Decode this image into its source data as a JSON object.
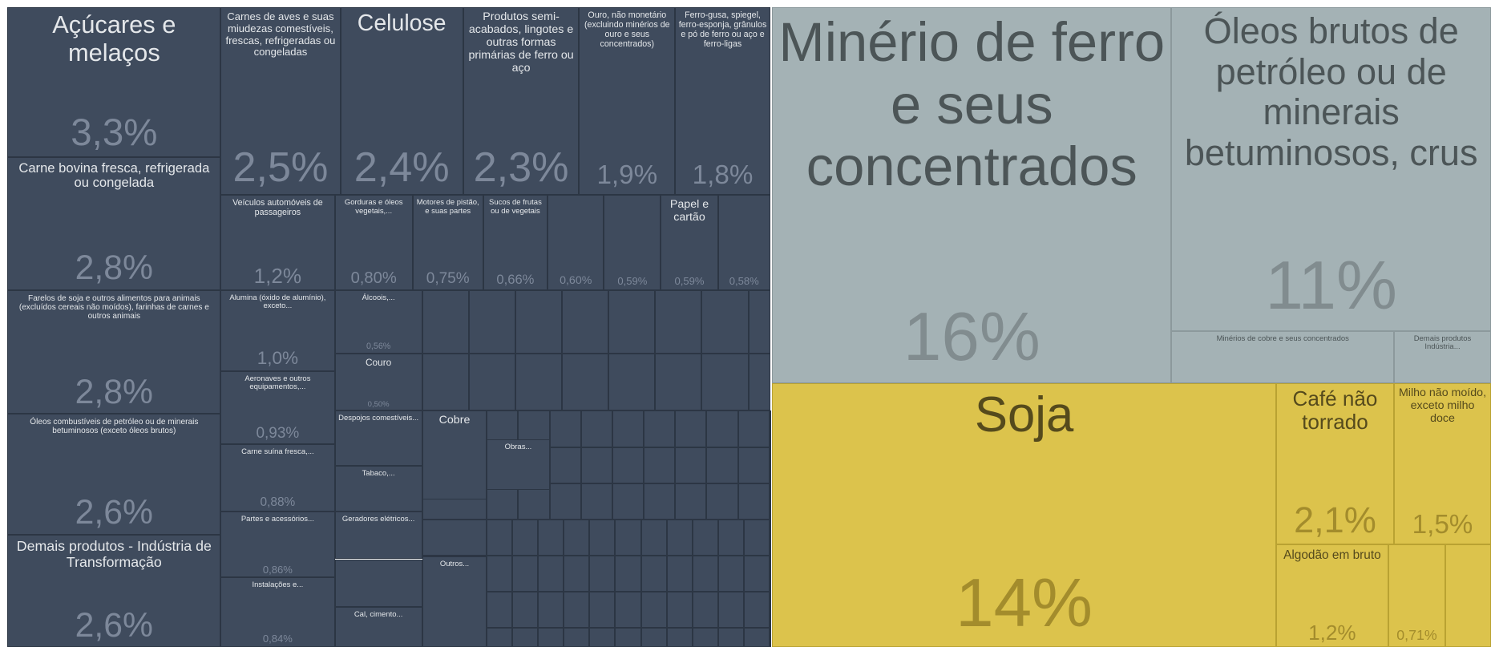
{
  "chart_data": {
    "type": "treemap",
    "groups": [
      {
        "color": "#3f4b5d",
        "items": [
          {
            "name": "Açúcares e melaços",
            "value": 3.3,
            "value_label": "3,3%"
          },
          {
            "name": "Carne bovina fresca, refrigerada ou congelada",
            "value": 2.8,
            "value_label": "2,8%"
          },
          {
            "name": "Farelos de soja e outros alimentos para animais (excluídos cereais não moídos), farinhas de carnes e outros animais",
            "value": 2.8,
            "value_label": "2,8%"
          },
          {
            "name": "Óleos combustíveis de petróleo ou de minerais betuminosos (exceto óleos brutos)",
            "value": 2.6,
            "value_label": "2,6%"
          },
          {
            "name": "Demais produtos - Indústria de Transformação",
            "value": 2.6,
            "value_label": "2,6%"
          },
          {
            "name": "Carnes de aves e suas miudezas comestíveis, frescas, refrigeradas ou congeladas",
            "value": 2.5,
            "value_label": "2,5%"
          },
          {
            "name": "Celulose",
            "value": 2.4,
            "value_label": "2,4%"
          },
          {
            "name": "Produtos semi-acabados, lingotes e outras formas primárias de ferro ou aço",
            "value": 2.3,
            "value_label": "2,3%"
          },
          {
            "name": "Ouro, não monetário (excluindo minérios de ouro e seus concentrados)",
            "value": 1.9,
            "value_label": "1,9%"
          },
          {
            "name": "Ferro-gusa, spiegel, ferro-esponja, grânulos e pó de ferro ou aço e ferro-ligas",
            "value": 1.8,
            "value_label": "1,8%"
          },
          {
            "name": "Veículos automóveis de passageiros",
            "value": 1.2,
            "value_label": "1,2%"
          },
          {
            "name": "Gorduras e óleos vegetais,...",
            "value": 0.8,
            "value_label": "0,80%"
          },
          {
            "name": "Motores de pistão, e suas partes",
            "value": 0.75,
            "value_label": "0,75%"
          },
          {
            "name": "Sucos de frutas ou de vegetais",
            "value": 0.66,
            "value_label": "0,66%"
          },
          {
            "name": null,
            "value": 0.6,
            "value_label": "0,60%"
          },
          {
            "name": null,
            "value": 0.59,
            "value_label": "0,59%"
          },
          {
            "name": "Papel e cartão",
            "value": 0.59,
            "value_label": "0,59%"
          },
          {
            "name": null,
            "value": 0.58,
            "value_label": "0,58%"
          },
          {
            "name": "Alumina (óxido de alumínio), exceto...",
            "value": 1.0,
            "value_label": "1,0%"
          },
          {
            "name": "Aeronaves e outros equipamentos,...",
            "value": 0.93,
            "value_label": "0,93%"
          },
          {
            "name": "Carne suína fresca,...",
            "value": 0.88,
            "value_label": "0,88%"
          },
          {
            "name": "Partes e acessórios...",
            "value": 0.86,
            "value_label": "0,86%"
          },
          {
            "name": "Instalações e...",
            "value": 0.84,
            "value_label": "0,84%"
          },
          {
            "name": "Álcoois,...",
            "value": 0.56,
            "value_label": "0,56%"
          },
          {
            "name": "Couro",
            "value": 0.5,
            "value_label": "0,50%"
          },
          {
            "name": "Despojos comestíveis..."
          },
          {
            "name": "Tabaco,..."
          },
          {
            "name": "Geradores elétricos..."
          },
          {
            "name": "Cal, cimento..."
          },
          {
            "name": "Cobre"
          },
          {
            "name": "Obras..."
          },
          {
            "name": "Outros..."
          }
        ]
      },
      {
        "color": "#a4b2b5",
        "items": [
          {
            "name": "Minério de ferro e seus concentrados",
            "value": 16,
            "value_label": "16%"
          },
          {
            "name": "Óleos brutos de petróleo ou de minerais betuminosos, crus",
            "value": 11,
            "value_label": "11%"
          },
          {
            "name": "Minérios de cobre e seus concentrados"
          },
          {
            "name": "Demais produtos Indústria..."
          }
        ]
      },
      {
        "color": "#dcc34c",
        "items": [
          {
            "name": "Soja",
            "value": 14,
            "value_label": "14%"
          },
          {
            "name": "Café não torrado",
            "value": 2.1,
            "value_label": "2,1%"
          },
          {
            "name": "Milho não moído, exceto milho doce",
            "value": 1.5,
            "value_label": "1,5%"
          },
          {
            "name": "Algodão em bruto",
            "value": 1.2,
            "value_label": "1,2%"
          },
          {
            "name": null,
            "value": 0.71,
            "value_label": "0,71%"
          }
        ]
      }
    ]
  }
}
